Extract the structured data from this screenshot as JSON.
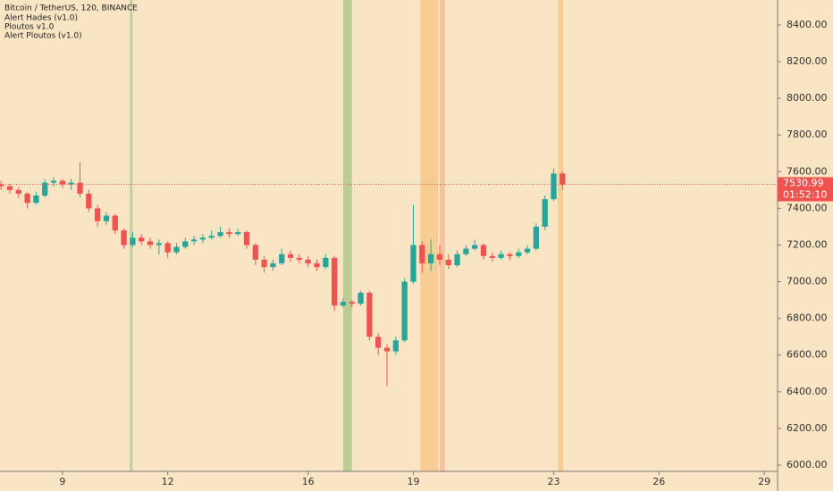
{
  "chart_data": {
    "type": "candlestick",
    "title": "Bitcoin / TetherUS, 120, BINANCE",
    "indicators": [
      "Alert Hades (v1.0)",
      "Ploutos v1.0",
      "Alert Ploutos (v1.0)"
    ],
    "x": [
      7.25,
      7.5,
      7.75,
      8,
      8.25,
      8.5,
      8.75,
      9,
      9.25,
      9.5,
      9.75,
      10,
      10.25,
      10.5,
      10.75,
      11,
      11.25,
      11.5,
      11.75,
      12,
      12.25,
      12.5,
      12.75,
      13,
      13.25,
      13.5,
      13.75,
      14,
      14.25,
      14.5,
      14.75,
      15,
      15.25,
      15.5,
      15.75,
      16,
      16.25,
      16.5,
      16.75,
      17,
      17.25,
      17.5,
      17.75,
      18,
      18.25,
      18.5,
      18.75,
      19,
      19.25,
      19.5,
      19.75,
      20,
      20.25,
      20.5,
      20.75,
      21,
      21.25,
      21.5,
      21.75,
      22,
      22.25,
      22.5,
      22.75,
      23,
      23.25
    ],
    "open": [
      7530,
      7520,
      7500,
      7480,
      7430,
      7470,
      7540,
      7550,
      7530,
      7540,
      7480,
      7400,
      7330,
      7360,
      7280,
      7200,
      7240,
      7220,
      7200,
      7210,
      7160,
      7190,
      7220,
      7230,
      7240,
      7250,
      7270,
      7260,
      7270,
      7200,
      7120,
      7080,
      7100,
      7150,
      7130,
      7120,
      7100,
      7080,
      7130,
      6870,
      6890,
      6880,
      6940,
      6700,
      6640,
      6620,
      6680,
      7000,
      7200,
      7100,
      7150,
      7120,
      7090,
      7150,
      7180,
      7200,
      7140,
      7130,
      7150,
      7140,
      7160,
      7180,
      7300,
      7450,
      7590
    ],
    "high": [
      7550,
      7535,
      7515,
      7490,
      7490,
      7560,
      7570,
      7560,
      7560,
      7650,
      7500,
      7420,
      7380,
      7370,
      7290,
      7270,
      7260,
      7240,
      7230,
      7220,
      7210,
      7240,
      7250,
      7260,
      7280,
      7300,
      7290,
      7290,
      7280,
      7210,
      7140,
      7120,
      7180,
      7170,
      7150,
      7140,
      7120,
      7150,
      7140,
      6910,
      6900,
      6950,
      6950,
      6720,
      6660,
      6700,
      7020,
      7420,
      7220,
      7230,
      7200,
      7150,
      7170,
      7200,
      7230,
      7210,
      7160,
      7170,
      7160,
      7180,
      7200,
      7320,
      7470,
      7620,
      7600
    ],
    "low": [
      7500,
      7480,
      7460,
      7400,
      7420,
      7460,
      7520,
      7510,
      7500,
      7460,
      7380,
      7300,
      7310,
      7260,
      7180,
      7190,
      7200,
      7180,
      7150,
      7130,
      7150,
      7180,
      7200,
      7210,
      7230,
      7240,
      7240,
      7250,
      7180,
      7090,
      7050,
      7060,
      7090,
      7110,
      7100,
      7080,
      7060,
      7070,
      6840,
      6860,
      6860,
      6870,
      6680,
      6600,
      6430,
      6600,
      6670,
      6990,
      7050,
      7060,
      7090,
      7070,
      7080,
      7140,
      7170,
      7120,
      7110,
      7120,
      7120,
      7130,
      7150,
      7170,
      7280,
      7440,
      7500
    ],
    "close": [
      7520,
      7500,
      7480,
      7430,
      7470,
      7540,
      7550,
      7530,
      7540,
      7480,
      7400,
      7330,
      7360,
      7280,
      7200,
      7240,
      7220,
      7200,
      7210,
      7160,
      7190,
      7220,
      7230,
      7240,
      7250,
      7270,
      7260,
      7270,
      7200,
      7120,
      7080,
      7100,
      7150,
      7130,
      7120,
      7100,
      7080,
      7130,
      6870,
      6890,
      6880,
      6940,
      6700,
      6640,
      6620,
      6680,
      7000,
      7200,
      7100,
      7150,
      7120,
      7090,
      7150,
      7180,
      7200,
      7140,
      7130,
      7150,
      7140,
      7160,
      7180,
      7300,
      7450,
      7590,
      7530
    ],
    "up_color": "#26a69a",
    "down_color": "#ef5350",
    "bands": [
      {
        "x": [
          10.92,
          11.0
        ],
        "color": "#b5cf94"
      },
      {
        "x": [
          17.0,
          17.25
        ],
        "color": "#b2c98c"
      },
      {
        "x": [
          19.2,
          19.7
        ],
        "color": "#f7c98b"
      },
      {
        "x": [
          19.75,
          19.9
        ],
        "color": "#f6bd9a"
      },
      {
        "x": [
          23.12,
          23.27
        ],
        "color": "#f6c98e"
      }
    ],
    "last_price": 7530.99,
    "countdown": "01:52:10",
    "xlim": [
      7.22,
      29.38
    ],
    "xticks": [
      9,
      12,
      16,
      19,
      23,
      26,
      29
    ],
    "ylim": [
      5966,
      8536
    ],
    "yticks": [
      {
        "value": 6000,
        "label": "6000.00"
      },
      {
        "value": 6200,
        "label": "6200.00"
      },
      {
        "value": 6400,
        "label": "6400.00"
      },
      {
        "value": 6600,
        "label": "6600.00"
      },
      {
        "value": 6800,
        "label": "6800.00"
      },
      {
        "value": 7000,
        "label": "7000.00"
      },
      {
        "value": 7200,
        "label": "7200.00"
      },
      {
        "value": 7400,
        "label": "7400.00"
      },
      {
        "value": 7600,
        "label": "7600.00"
      },
      {
        "value": 7800,
        "label": "7800.00"
      },
      {
        "value": 8000,
        "label": "8000.00"
      },
      {
        "value": 8200,
        "label": "8200.00"
      },
      {
        "value": 8400,
        "label": "8400.00"
      }
    ],
    "grid": false
  }
}
